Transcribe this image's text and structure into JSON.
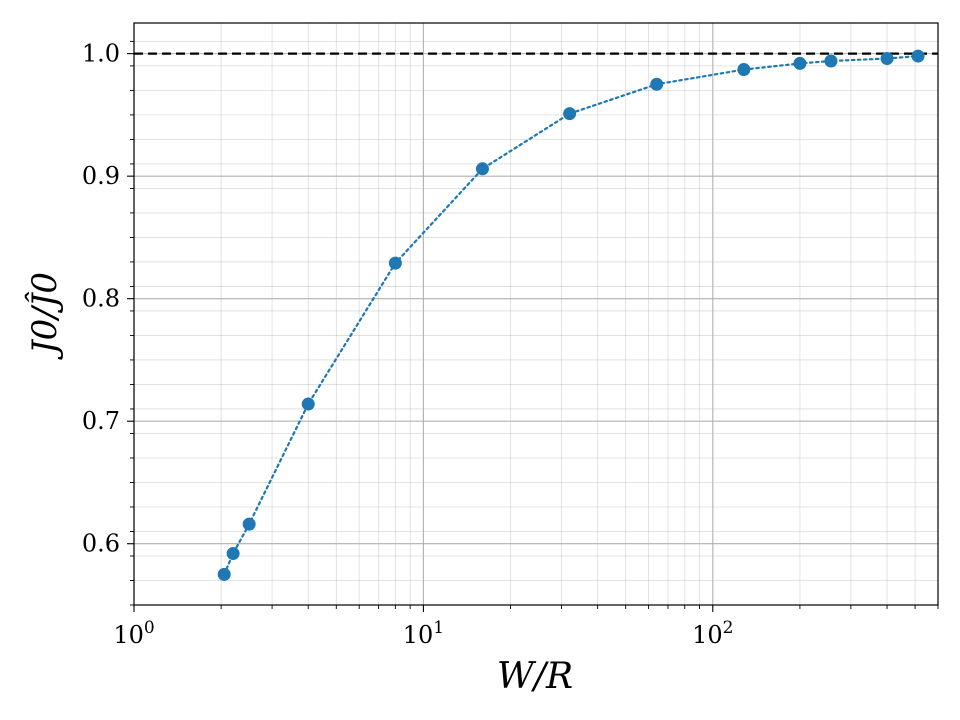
{
  "chart_data": {
    "type": "scatter",
    "xlabel": "W/R",
    "ylabel": "J0/Ĵ0",
    "xscale": "log",
    "xlim": [
      1,
      600
    ],
    "ylim": [
      0.55,
      1.025
    ],
    "grid": true,
    "x_ticks": [
      {
        "value": 1,
        "base": "10",
        "exp": "0"
      },
      {
        "value": 10,
        "base": "10",
        "exp": "1"
      },
      {
        "value": 100,
        "base": "10",
        "exp": "2"
      }
    ],
    "y_ticks": [
      {
        "value": 0.6,
        "label": "0.6"
      },
      {
        "value": 0.7,
        "label": "0.7"
      },
      {
        "value": 0.8,
        "label": "0.8"
      },
      {
        "value": 0.9,
        "label": "0.9"
      },
      {
        "value": 1.0,
        "label": "1.0"
      }
    ],
    "reference_line": {
      "y": 1.0,
      "style": "dashed",
      "color": "#000000"
    },
    "series": [
      {
        "color": "#1f77b4",
        "line_style": "dotted",
        "x": [
          2.05,
          2.2,
          2.5,
          4,
          8,
          16,
          32,
          64,
          128,
          200,
          256,
          400,
          512
        ],
        "y": [
          0.575,
          0.592,
          0.616,
          0.714,
          0.829,
          0.906,
          0.951,
          0.975,
          0.987,
          0.992,
          0.994,
          0.996,
          0.998
        ]
      }
    ]
  }
}
